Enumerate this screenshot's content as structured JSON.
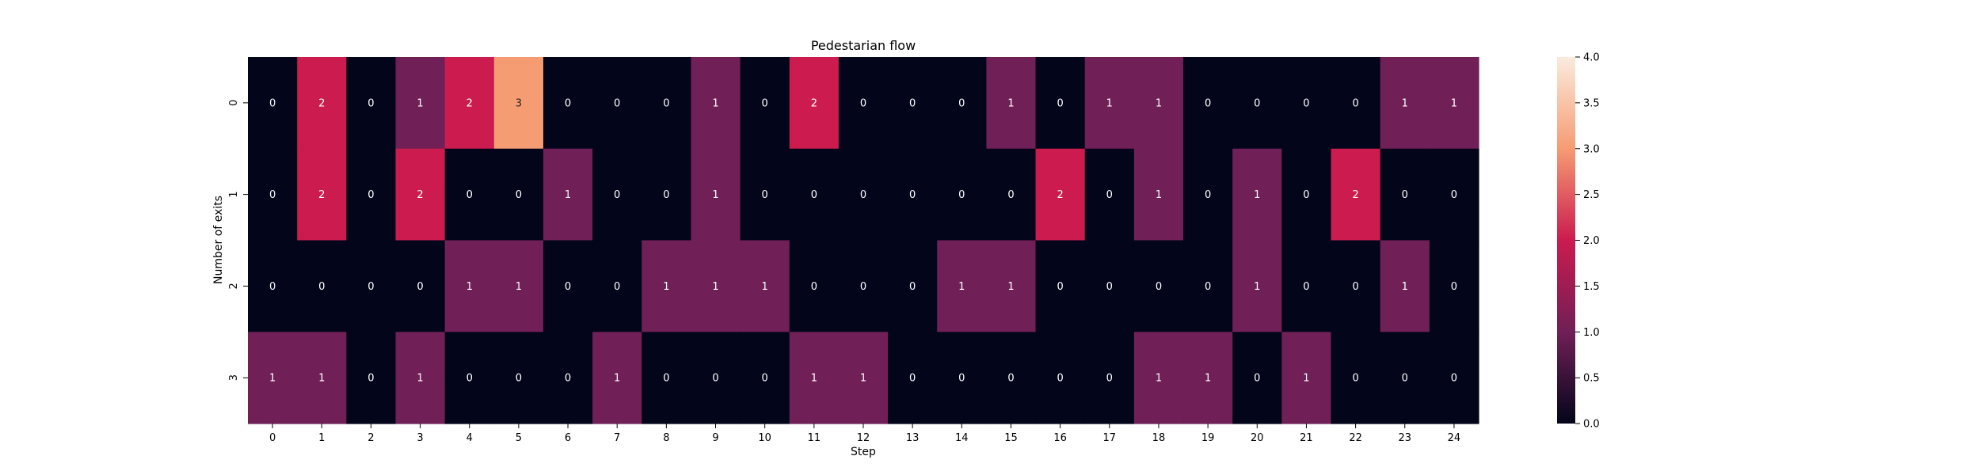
{
  "chart_data": {
    "type": "heatmap",
    "title": "Pedestarian flow",
    "xlabel": "Step",
    "ylabel": "Number of exits",
    "x": [
      "0",
      "1",
      "2",
      "3",
      "4",
      "5",
      "6",
      "7",
      "8",
      "9",
      "10",
      "11",
      "12",
      "13",
      "14",
      "15",
      "16",
      "17",
      "18",
      "19",
      "20",
      "21",
      "22",
      "23",
      "24"
    ],
    "y": [
      "0",
      "1",
      "2",
      "3"
    ],
    "values": [
      [
        0,
        2,
        0,
        1,
        2,
        3,
        0,
        0,
        0,
        1,
        0,
        2,
        0,
        0,
        0,
        1,
        0,
        1,
        1,
        0,
        0,
        0,
        0,
        1,
        1
      ],
      [
        0,
        2,
        0,
        2,
        0,
        0,
        1,
        0,
        0,
        1,
        0,
        0,
        0,
        0,
        0,
        0,
        2,
        0,
        1,
        0,
        1,
        0,
        2,
        0,
        0
      ],
      [
        0,
        0,
        0,
        0,
        1,
        1,
        0,
        0,
        1,
        1,
        1,
        0,
        0,
        0,
        1,
        1,
        0,
        0,
        0,
        0,
        1,
        0,
        0,
        1,
        0
      ],
      [
        1,
        1,
        0,
        1,
        0,
        0,
        0,
        1,
        0,
        0,
        0,
        1,
        1,
        0,
        0,
        0,
        0,
        0,
        1,
        1,
        0,
        1,
        0,
        0,
        0
      ]
    ],
    "colorbar": {
      "vmin": 0,
      "vmax": 4,
      "ticks": [
        "0.0",
        "0.5",
        "1.0",
        "1.5",
        "2.0",
        "2.5",
        "3.0",
        "3.5",
        "4.0"
      ]
    },
    "colors": {
      "0": "#03051a",
      "1": "#701f57",
      "2": "#cb1b4f",
      "3": "#f69c73",
      "4": "#faebdd"
    },
    "legend": "right",
    "grid": false
  }
}
